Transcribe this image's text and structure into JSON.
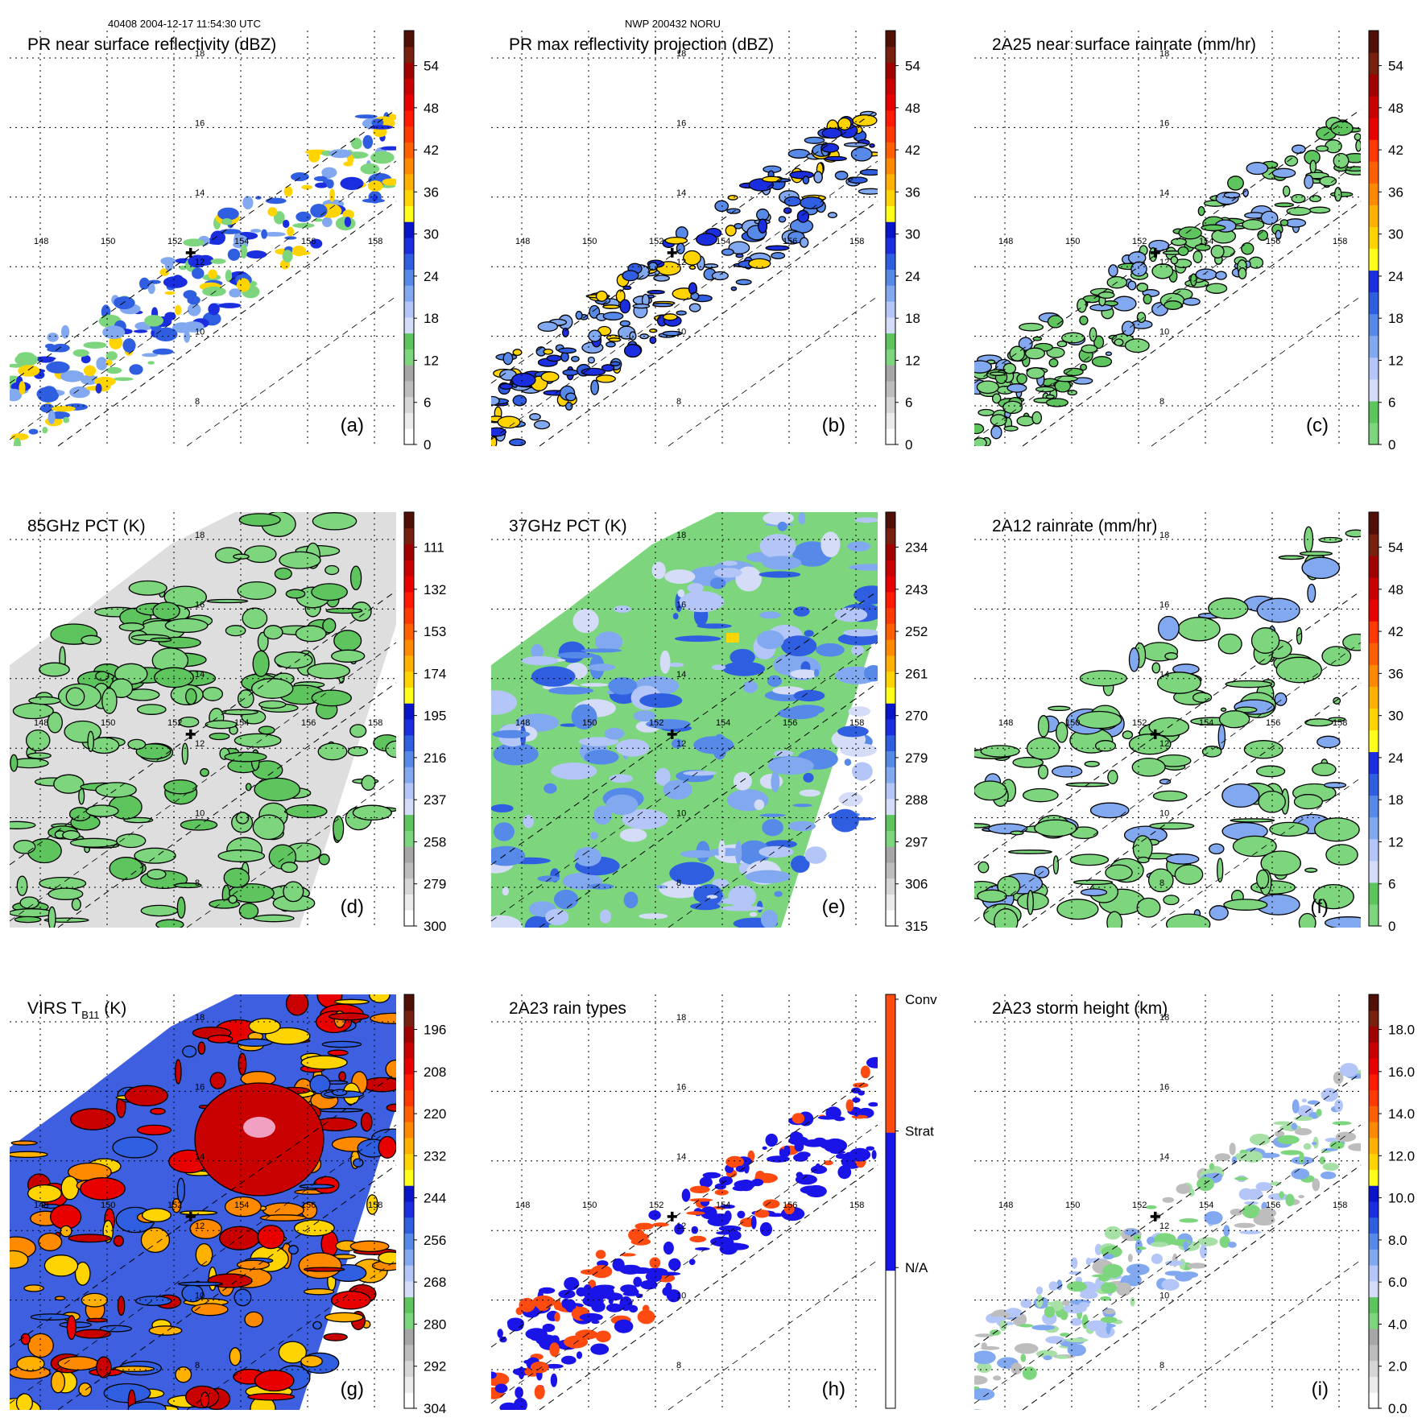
{
  "header": {
    "left": "40408 2004-12-17 11:54:30 UTC",
    "center": "NWP 200432 NORU"
  },
  "chart_data": [
    {
      "type": "heatmap",
      "id": "a",
      "title": "PR near surface reflectivity (dBZ)",
      "panel_label": "(a)",
      "colorbar_ticks": [
        "0",
        "6",
        "12",
        "18",
        "24",
        "30",
        "36",
        "42",
        "48",
        "54"
      ],
      "colorbar_colors": [
        "#ffffff",
        "#ebebeb",
        "#d6d6d6",
        "#bdbdbd",
        "#a6a6a6",
        "#7dd67d",
        "#5ec45e",
        "#d4dcf8",
        "#b3c6f7",
        "#82a9ef",
        "#5689e8",
        "#2f5ee0",
        "#1a2ee0",
        "#0a14c8",
        "#ffff1a",
        "#ffd400",
        "#ffb000",
        "#ff8a00",
        "#ff6000",
        "#ff3a00",
        "#ff1a00",
        "#e80000",
        "#c80000",
        "#a00000",
        "#782010",
        "#501008"
      ],
      "contour": false,
      "coverage": "swath",
      "fill": [
        "#2f5ee0",
        "#82a9ef",
        "#7dd67d",
        "#1a2ee0",
        "#ffd400"
      ],
      "axis": {
        "lon_labels": [
          "148",
          "150",
          "152",
          "154",
          "156",
          "158"
        ],
        "lat_labels": [
          "8",
          "10",
          "12",
          "14",
          "16",
          "18"
        ]
      },
      "storm_center": {
        "lon": 152.5,
        "lat": 12.4
      }
    },
    {
      "type": "heatmap",
      "id": "b",
      "title": "PR max reflectivity projection (dBZ)",
      "panel_label": "(b)",
      "colorbar_ticks": [
        "0",
        "6",
        "12",
        "18",
        "24",
        "30",
        "36",
        "42",
        "48",
        "54"
      ],
      "colorbar_colors": [
        "#ffffff",
        "#ebebeb",
        "#d6d6d6",
        "#bdbdbd",
        "#a6a6a6",
        "#7dd67d",
        "#5ec45e",
        "#d4dcf8",
        "#b3c6f7",
        "#82a9ef",
        "#5689e8",
        "#2f5ee0",
        "#1a2ee0",
        "#0a14c8",
        "#ffff1a",
        "#ffd400",
        "#ffb000",
        "#ff8a00",
        "#ff6000",
        "#ff3a00",
        "#ff1a00",
        "#e80000",
        "#c80000",
        "#a00000",
        "#782010",
        "#501008"
      ],
      "contour": true,
      "coverage": "swath",
      "fill": [
        "#2f5ee0",
        "#5689e8",
        "#1a2ee0",
        "#ffd400",
        "#82a9ef"
      ],
      "axis": {
        "lon_labels": [
          "148",
          "150",
          "152",
          "154",
          "156",
          "158"
        ],
        "lat_labels": [
          "8",
          "10",
          "12",
          "14",
          "16",
          "18"
        ]
      },
      "storm_center": {
        "lon": 152.5,
        "lat": 12.4
      }
    },
    {
      "type": "heatmap",
      "id": "c",
      "title": "2A25 near surface rainrate (mm/hr)",
      "panel_label": "(c)",
      "colorbar_ticks": [
        "0",
        "6",
        "12",
        "18",
        "24",
        "30",
        "36",
        "42",
        "48",
        "54"
      ],
      "colorbar_colors": [
        "#7dd67d",
        "#5ec45e",
        "#d4dcf8",
        "#b3c6f7",
        "#82a9ef",
        "#5689e8",
        "#2f5ee0",
        "#1a2ee0",
        "#ffff1a",
        "#ffd400",
        "#ffb000",
        "#ff8a00",
        "#ff6000",
        "#ff3a00",
        "#e80000",
        "#c80000",
        "#a00000",
        "#782010",
        "#501008"
      ],
      "contour": true,
      "coverage": "swath",
      "fill": [
        "#7dd67d",
        "#7dd67d",
        "#5ec45e",
        "#82a9ef"
      ],
      "axis": {
        "lon_labels": [
          "148",
          "150",
          "152",
          "154",
          "156",
          "158"
        ],
        "lat_labels": [
          "8",
          "10",
          "12",
          "14",
          "16",
          "18"
        ]
      },
      "storm_center": {
        "lon": 152.5,
        "lat": 12.4
      }
    },
    {
      "type": "heatmap",
      "id": "d",
      "title": "85GHz PCT (K)",
      "panel_label": "(d)",
      "colorbar_ticks": [
        "300",
        "279",
        "258",
        "237",
        "216",
        "195",
        "174",
        "153",
        "132",
        "111"
      ],
      "colorbar_colors": [
        "#ffffff",
        "#ebebeb",
        "#d6d6d6",
        "#bdbdbd",
        "#a6a6a6",
        "#7dd67d",
        "#5ec45e",
        "#d4dcf8",
        "#b3c6f7",
        "#82a9ef",
        "#5689e8",
        "#2f5ee0",
        "#1a2ee0",
        "#0a14c8",
        "#ffff1a",
        "#ffd400",
        "#ffb000",
        "#ff8a00",
        "#ff6000",
        "#ff3a00",
        "#ff1a00",
        "#e80000",
        "#c80000",
        "#a00000",
        "#782010",
        "#501008"
      ],
      "contour": true,
      "coverage": "tmi",
      "background": "#dedede",
      "fill": [
        "#7dd67d",
        "#5ec45e",
        "#7dd67d"
      ],
      "axis": {
        "lon_labels": [
          "148",
          "150",
          "152",
          "154",
          "156",
          "158"
        ],
        "lat_labels": [
          "8",
          "10",
          "12",
          "14",
          "16",
          "18"
        ]
      },
      "storm_center": {
        "lon": 152.5,
        "lat": 12.4
      }
    },
    {
      "type": "heatmap",
      "id": "e",
      "title": "37GHz PCT (K)",
      "panel_label": "(e)",
      "colorbar_ticks": [
        "315",
        "306",
        "297",
        "288",
        "279",
        "270",
        "261",
        "252",
        "243",
        "234"
      ],
      "colorbar_colors": [
        "#ffffff",
        "#ebebeb",
        "#d6d6d6",
        "#bdbdbd",
        "#a6a6a6",
        "#7dd67d",
        "#5ec45e",
        "#d4dcf8",
        "#b3c6f7",
        "#82a9ef",
        "#5689e8",
        "#2f5ee0",
        "#1a2ee0",
        "#0a14c8",
        "#ffff1a",
        "#ffd400",
        "#ffb000",
        "#ff8a00",
        "#ff6000",
        "#ff3a00",
        "#ff1a00",
        "#e80000",
        "#c80000",
        "#a00000",
        "#782010",
        "#501008"
      ],
      "contour": false,
      "coverage": "tmi",
      "background": "#7dd67d",
      "fill": [
        "#b3c6f7",
        "#d4dcf8",
        "#5689e8",
        "#2f5ee0",
        "#82a9ef"
      ],
      "axis": {
        "lon_labels": [
          "148",
          "150",
          "152",
          "154",
          "156",
          "158"
        ],
        "lat_labels": [
          "8",
          "10",
          "12",
          "14",
          "16",
          "18"
        ]
      },
      "storm_center": {
        "lon": 152.5,
        "lat": 12.4
      }
    },
    {
      "type": "heatmap",
      "id": "f",
      "title": "2A12 rainrate (mm/hr)",
      "panel_label": "(f)",
      "colorbar_ticks": [
        "0",
        "6",
        "12",
        "18",
        "24",
        "30",
        "36",
        "42",
        "48",
        "54"
      ],
      "colorbar_colors": [
        "#7dd67d",
        "#5ec45e",
        "#d4dcf8",
        "#b3c6f7",
        "#82a9ef",
        "#5689e8",
        "#2f5ee0",
        "#1a2ee0",
        "#ffff1a",
        "#ffd400",
        "#ffb000",
        "#ff8a00",
        "#ff6000",
        "#ff3a00",
        "#e80000",
        "#c80000",
        "#a00000",
        "#782010",
        "#501008"
      ],
      "contour": true,
      "coverage": "tmi-partial",
      "fill": [
        "#7dd67d",
        "#7dd67d",
        "#82a9ef",
        "#7dd67d"
      ],
      "axis": {
        "lon_labels": [
          "148",
          "150",
          "152",
          "154",
          "156",
          "158"
        ],
        "lat_labels": [
          "8",
          "10",
          "12",
          "14",
          "16",
          "18"
        ]
      },
      "storm_center": {
        "lon": 152.5,
        "lat": 12.4
      }
    },
    {
      "type": "heatmap",
      "id": "g",
      "title": "VIRS T",
      "title_sub": "B11",
      "title_suffix": " (K)",
      "panel_label": "(g)",
      "colorbar_ticks": [
        "304",
        "292",
        "280",
        "268",
        "256",
        "244",
        "232",
        "220",
        "208",
        "196"
      ],
      "colorbar_colors": [
        "#ffffff",
        "#ebebeb",
        "#d6d6d6",
        "#bdbdbd",
        "#a6a6a6",
        "#7dd67d",
        "#5ec45e",
        "#d4dcf8",
        "#b3c6f7",
        "#82a9ef",
        "#5689e8",
        "#2f5ee0",
        "#1a2ee0",
        "#0a14c8",
        "#ffff1a",
        "#ffd400",
        "#ffb000",
        "#ff8a00",
        "#ff6000",
        "#ff3a00",
        "#ff1a00",
        "#e80000",
        "#c80000",
        "#a00000",
        "#782010",
        "#501008"
      ],
      "contour": true,
      "coverage": "tmi",
      "background": "#3d5fe0",
      "fill": [
        "#ff8a00",
        "#ffb000",
        "#e80000",
        "#c80000",
        "#ffd400",
        "#2f5ee0"
      ],
      "axis": {
        "lon_labels": [
          "148",
          "150",
          "152",
          "154",
          "156",
          "158"
        ],
        "lat_labels": [
          "8",
          "10",
          "12",
          "14",
          "16",
          "18"
        ]
      },
      "storm_center": {
        "lon": 152.5,
        "lat": 12.4
      }
    },
    {
      "type": "heatmap",
      "id": "h",
      "title": "2A23 rain types",
      "panel_label": "(h)",
      "colorbar_ticks": [
        "N/A",
        "Strat",
        "Conv"
      ],
      "colorbar_colors": [
        "#ffffff",
        "#1a14e8",
        "#ff4a10"
      ],
      "categorical": true,
      "contour": false,
      "coverage": "swath",
      "fill": [
        "#1a14e8",
        "#1a14e8",
        "#1a14e8",
        "#ff4a10"
      ],
      "axis": {
        "lon_labels": [
          "148",
          "150",
          "152",
          "154",
          "156",
          "158"
        ],
        "lat_labels": [
          "8",
          "10",
          "12",
          "14",
          "16",
          "18"
        ]
      },
      "storm_center": {
        "lon": 152.5,
        "lat": 12.4
      }
    },
    {
      "type": "heatmap",
      "id": "i",
      "title": "2A23 storm height (km)",
      "panel_label": "(i)",
      "colorbar_ticks": [
        "0.0",
        "2.0",
        "4.0",
        "6.0",
        "8.0",
        "10.0",
        "12.0",
        "14.0",
        "16.0",
        "18.0"
      ],
      "colorbar_colors": [
        "#ffffff",
        "#ebebeb",
        "#d6d6d6",
        "#bdbdbd",
        "#a6a6a6",
        "#7dd67d",
        "#5ec45e",
        "#d4dcf8",
        "#b3c6f7",
        "#82a9ef",
        "#5689e8",
        "#2f5ee0",
        "#1a2ee0",
        "#0a14c8",
        "#ffff1a",
        "#ffd400",
        "#ffb000",
        "#ff8a00",
        "#ff6000",
        "#ff3a00",
        "#ff1a00",
        "#e80000",
        "#c80000",
        "#a00000",
        "#782010",
        "#501008"
      ],
      "contour": false,
      "coverage": "swath",
      "fill": [
        "#a6e0a6",
        "#7dd67d",
        "#b3c6f7",
        "#bdbdbd",
        "#82a9ef"
      ],
      "axis": {
        "lon_labels": [
          "148",
          "150",
          "152",
          "154",
          "156",
          "158"
        ],
        "lat_labels": [
          "8",
          "10",
          "12",
          "14",
          "16",
          "18"
        ]
      },
      "storm_center": {
        "lon": 152.5,
        "lat": 12.4
      }
    }
  ]
}
